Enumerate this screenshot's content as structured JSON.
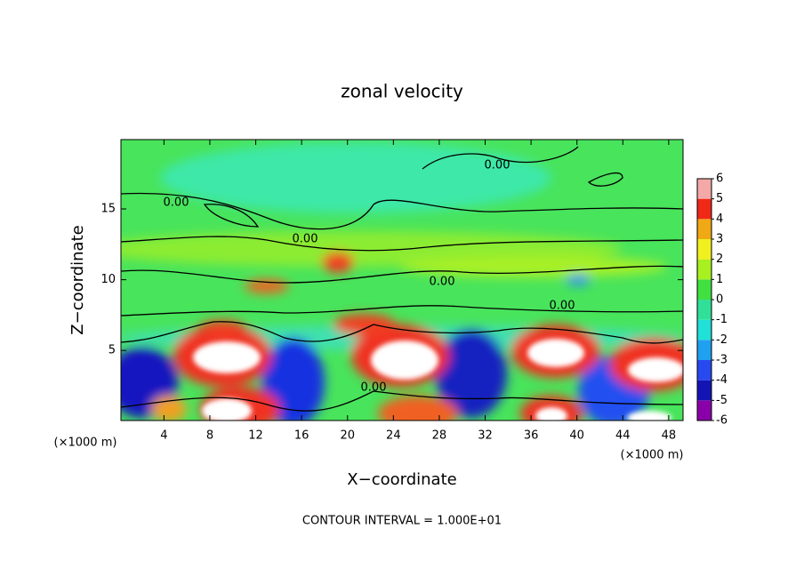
{
  "chart_data": {
    "type": "contour",
    "title": "zonal velocity",
    "x_label": "X−coordinate",
    "y_label": "Z−coordinate",
    "x_unit_label": "(×1000 m)",
    "y_unit_label": "(×1000 m)",
    "footer": "CONTOUR INTERVAL = 1.000E+01",
    "contour_labels": [
      "0.00",
      "0.00",
      "0.00",
      "0.00",
      "0.00",
      "0.00"
    ],
    "xlim": [
      0.25,
      49.25
    ],
    "xticks": [
      4,
      8,
      12,
      16,
      20,
      24,
      28,
      32,
      36,
      40,
      44,
      48
    ],
    "ylim": [
      0.05,
      19.9
    ],
    "yticks": [
      5,
      10,
      15
    ],
    "colorbar": {
      "ticks": [
        -6,
        -5,
        -4,
        -3,
        -2,
        -1,
        0,
        1,
        2,
        3,
        4,
        5,
        6
      ],
      "colors": [
        "#8a00a8",
        "#1414b4",
        "#2848f0",
        "#20a0f0",
        "#20e0d8",
        "#30e098",
        "#40e040",
        "#a8f020",
        "#f0f020",
        "#f0a814",
        "#f02818",
        "#f4a8a8"
      ]
    }
  }
}
